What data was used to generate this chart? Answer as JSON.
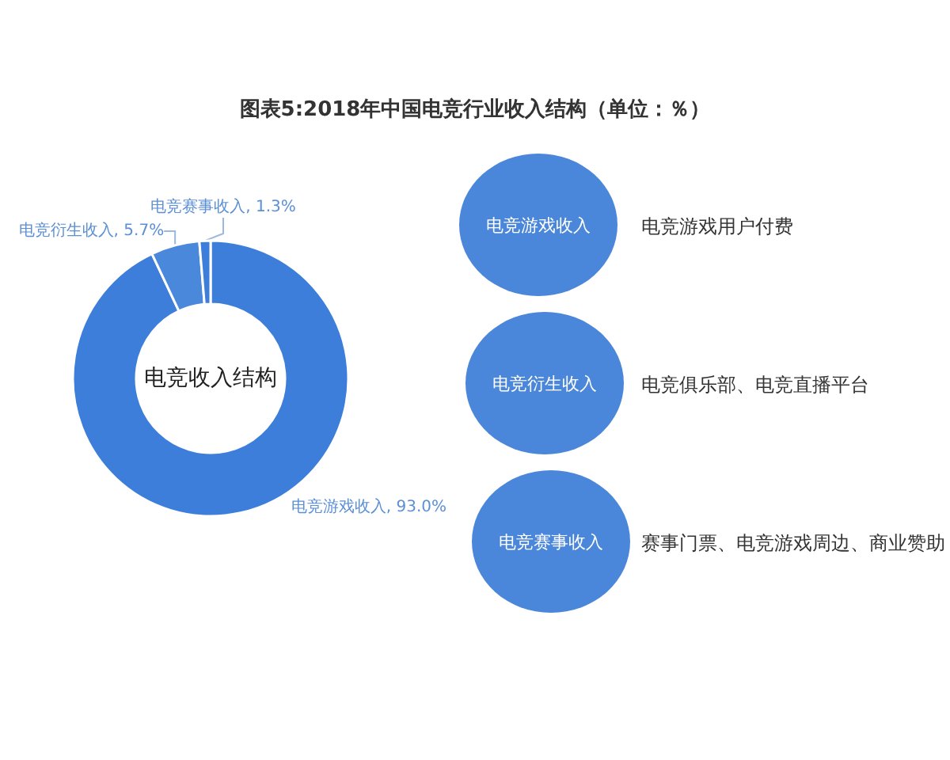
{
  "chart_data": [
    {
      "type": "donut",
      "title": "图表5:2018年中国电竞行业收入结构（单位：％）",
      "categories": [
        "电竞游戏收入",
        "电竞衍生收入",
        "电竞赛事收入"
      ],
      "values": [
        93.0,
        5.7,
        1.3
      ],
      "value_labels": [
        "93.0%",
        "5.7%",
        "1.3%"
      ],
      "colors": [
        "#3d7edb",
        "#4a88dc",
        "#3d7edb"
      ],
      "annotations": [
        "电竞收入结构"
      ]
    },
    {
      "type": "other",
      "categories": [
        "电竞游戏收入",
        "电竞衍生收入",
        "电竞赛事收入"
      ],
      "annotations": [
        "电竞游戏用户付费",
        "电竞俱乐部、电竞直播平台",
        "赛事门票、电竞游戏周边、商业赞助"
      ],
      "color": "#4a86d9"
    }
  ]
}
